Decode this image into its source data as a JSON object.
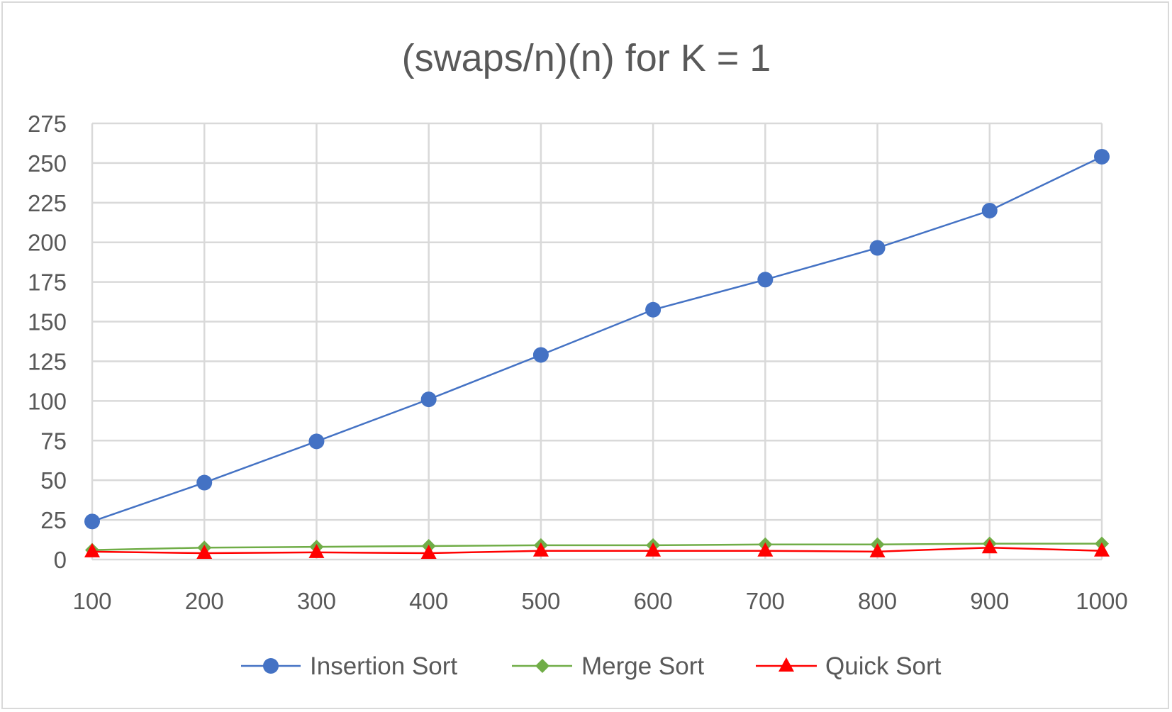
{
  "chart_data": {
    "type": "line",
    "title": "(swaps/n)(n) for K = 1",
    "xlabel": "",
    "ylabel": "",
    "x": [
      100,
      200,
      300,
      400,
      500,
      600,
      700,
      800,
      900,
      1000
    ],
    "ylim": [
      0,
      275
    ],
    "yticks": [
      0,
      25,
      50,
      75,
      100,
      125,
      150,
      175,
      200,
      225,
      250,
      275
    ],
    "grid": true,
    "legend_position": "bottom",
    "series": [
      {
        "name": "Insertion Sort",
        "color": "#4472c4",
        "marker": "circle",
        "values": [
          24,
          48.5,
          74.5,
          101,
          129,
          157.5,
          176.5,
          196.5,
          220,
          254
        ]
      },
      {
        "name": "Merge Sort",
        "color": "#70ad47",
        "marker": "diamond",
        "values": [
          6,
          7.5,
          8,
          8.5,
          9,
          9,
          9.5,
          9.5,
          10,
          10
        ]
      },
      {
        "name": "Quick Sort",
        "color": "#ff0000",
        "marker": "triangle",
        "values": [
          5,
          4,
          4.5,
          4,
          5.5,
          5.5,
          5.5,
          5,
          7.5,
          5.5
        ]
      }
    ]
  }
}
